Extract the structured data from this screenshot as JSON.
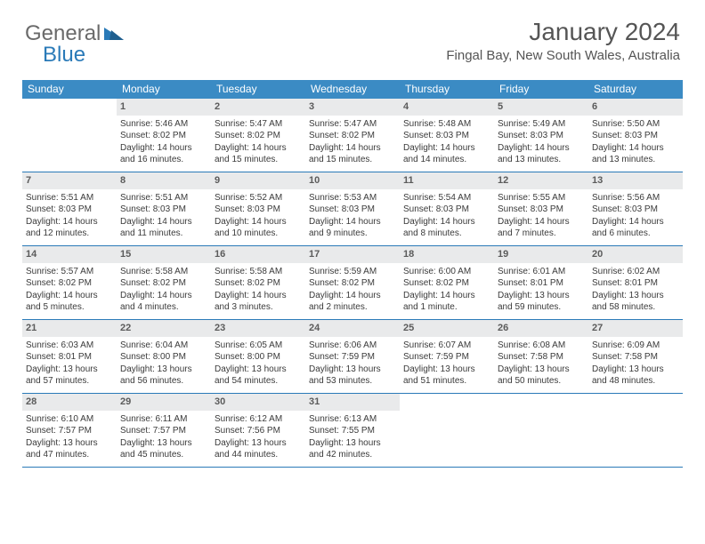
{
  "logo": {
    "part1": "General",
    "part2": "Blue"
  },
  "title": "January 2024",
  "location": "Fingal Bay, New South Wales, Australia",
  "colors": {
    "header_bg": "#3b8bc4",
    "header_text": "#ffffff",
    "rule": "#2a7ab8",
    "daynum_bg": "#e9eaeb",
    "logo_gray": "#6a6a6a",
    "logo_blue": "#2a7ab8"
  },
  "dow": [
    "Sunday",
    "Monday",
    "Tuesday",
    "Wednesday",
    "Thursday",
    "Friday",
    "Saturday"
  ],
  "weeks": [
    [
      {
        "n": "",
        "l1": "",
        "l2": "",
        "l3": "",
        "l4": ""
      },
      {
        "n": "1",
        "l1": "Sunrise: 5:46 AM",
        "l2": "Sunset: 8:02 PM",
        "l3": "Daylight: 14 hours",
        "l4": "and 16 minutes."
      },
      {
        "n": "2",
        "l1": "Sunrise: 5:47 AM",
        "l2": "Sunset: 8:02 PM",
        "l3": "Daylight: 14 hours",
        "l4": "and 15 minutes."
      },
      {
        "n": "3",
        "l1": "Sunrise: 5:47 AM",
        "l2": "Sunset: 8:02 PM",
        "l3": "Daylight: 14 hours",
        "l4": "and 15 minutes."
      },
      {
        "n": "4",
        "l1": "Sunrise: 5:48 AM",
        "l2": "Sunset: 8:03 PM",
        "l3": "Daylight: 14 hours",
        "l4": "and 14 minutes."
      },
      {
        "n": "5",
        "l1": "Sunrise: 5:49 AM",
        "l2": "Sunset: 8:03 PM",
        "l3": "Daylight: 14 hours",
        "l4": "and 13 minutes."
      },
      {
        "n": "6",
        "l1": "Sunrise: 5:50 AM",
        "l2": "Sunset: 8:03 PM",
        "l3": "Daylight: 14 hours",
        "l4": "and 13 minutes."
      }
    ],
    [
      {
        "n": "7",
        "l1": "Sunrise: 5:51 AM",
        "l2": "Sunset: 8:03 PM",
        "l3": "Daylight: 14 hours",
        "l4": "and 12 minutes."
      },
      {
        "n": "8",
        "l1": "Sunrise: 5:51 AM",
        "l2": "Sunset: 8:03 PM",
        "l3": "Daylight: 14 hours",
        "l4": "and 11 minutes."
      },
      {
        "n": "9",
        "l1": "Sunrise: 5:52 AM",
        "l2": "Sunset: 8:03 PM",
        "l3": "Daylight: 14 hours",
        "l4": "and 10 minutes."
      },
      {
        "n": "10",
        "l1": "Sunrise: 5:53 AM",
        "l2": "Sunset: 8:03 PM",
        "l3": "Daylight: 14 hours",
        "l4": "and 9 minutes."
      },
      {
        "n": "11",
        "l1": "Sunrise: 5:54 AM",
        "l2": "Sunset: 8:03 PM",
        "l3": "Daylight: 14 hours",
        "l4": "and 8 minutes."
      },
      {
        "n": "12",
        "l1": "Sunrise: 5:55 AM",
        "l2": "Sunset: 8:03 PM",
        "l3": "Daylight: 14 hours",
        "l4": "and 7 minutes."
      },
      {
        "n": "13",
        "l1": "Sunrise: 5:56 AM",
        "l2": "Sunset: 8:03 PM",
        "l3": "Daylight: 14 hours",
        "l4": "and 6 minutes."
      }
    ],
    [
      {
        "n": "14",
        "l1": "Sunrise: 5:57 AM",
        "l2": "Sunset: 8:02 PM",
        "l3": "Daylight: 14 hours",
        "l4": "and 5 minutes."
      },
      {
        "n": "15",
        "l1": "Sunrise: 5:58 AM",
        "l2": "Sunset: 8:02 PM",
        "l3": "Daylight: 14 hours",
        "l4": "and 4 minutes."
      },
      {
        "n": "16",
        "l1": "Sunrise: 5:58 AM",
        "l2": "Sunset: 8:02 PM",
        "l3": "Daylight: 14 hours",
        "l4": "and 3 minutes."
      },
      {
        "n": "17",
        "l1": "Sunrise: 5:59 AM",
        "l2": "Sunset: 8:02 PM",
        "l3": "Daylight: 14 hours",
        "l4": "and 2 minutes."
      },
      {
        "n": "18",
        "l1": "Sunrise: 6:00 AM",
        "l2": "Sunset: 8:02 PM",
        "l3": "Daylight: 14 hours",
        "l4": "and 1 minute."
      },
      {
        "n": "19",
        "l1": "Sunrise: 6:01 AM",
        "l2": "Sunset: 8:01 PM",
        "l3": "Daylight: 13 hours",
        "l4": "and 59 minutes."
      },
      {
        "n": "20",
        "l1": "Sunrise: 6:02 AM",
        "l2": "Sunset: 8:01 PM",
        "l3": "Daylight: 13 hours",
        "l4": "and 58 minutes."
      }
    ],
    [
      {
        "n": "21",
        "l1": "Sunrise: 6:03 AM",
        "l2": "Sunset: 8:01 PM",
        "l3": "Daylight: 13 hours",
        "l4": "and 57 minutes."
      },
      {
        "n": "22",
        "l1": "Sunrise: 6:04 AM",
        "l2": "Sunset: 8:00 PM",
        "l3": "Daylight: 13 hours",
        "l4": "and 56 minutes."
      },
      {
        "n": "23",
        "l1": "Sunrise: 6:05 AM",
        "l2": "Sunset: 8:00 PM",
        "l3": "Daylight: 13 hours",
        "l4": "and 54 minutes."
      },
      {
        "n": "24",
        "l1": "Sunrise: 6:06 AM",
        "l2": "Sunset: 7:59 PM",
        "l3": "Daylight: 13 hours",
        "l4": "and 53 minutes."
      },
      {
        "n": "25",
        "l1": "Sunrise: 6:07 AM",
        "l2": "Sunset: 7:59 PM",
        "l3": "Daylight: 13 hours",
        "l4": "and 51 minutes."
      },
      {
        "n": "26",
        "l1": "Sunrise: 6:08 AM",
        "l2": "Sunset: 7:58 PM",
        "l3": "Daylight: 13 hours",
        "l4": "and 50 minutes."
      },
      {
        "n": "27",
        "l1": "Sunrise: 6:09 AM",
        "l2": "Sunset: 7:58 PM",
        "l3": "Daylight: 13 hours",
        "l4": "and 48 minutes."
      }
    ],
    [
      {
        "n": "28",
        "l1": "Sunrise: 6:10 AM",
        "l2": "Sunset: 7:57 PM",
        "l3": "Daylight: 13 hours",
        "l4": "and 47 minutes."
      },
      {
        "n": "29",
        "l1": "Sunrise: 6:11 AM",
        "l2": "Sunset: 7:57 PM",
        "l3": "Daylight: 13 hours",
        "l4": "and 45 minutes."
      },
      {
        "n": "30",
        "l1": "Sunrise: 6:12 AM",
        "l2": "Sunset: 7:56 PM",
        "l3": "Daylight: 13 hours",
        "l4": "and 44 minutes."
      },
      {
        "n": "31",
        "l1": "Sunrise: 6:13 AM",
        "l2": "Sunset: 7:55 PM",
        "l3": "Daylight: 13 hours",
        "l4": "and 42 minutes."
      },
      {
        "n": "",
        "l1": "",
        "l2": "",
        "l3": "",
        "l4": ""
      },
      {
        "n": "",
        "l1": "",
        "l2": "",
        "l3": "",
        "l4": ""
      },
      {
        "n": "",
        "l1": "",
        "l2": "",
        "l3": "",
        "l4": ""
      }
    ]
  ]
}
